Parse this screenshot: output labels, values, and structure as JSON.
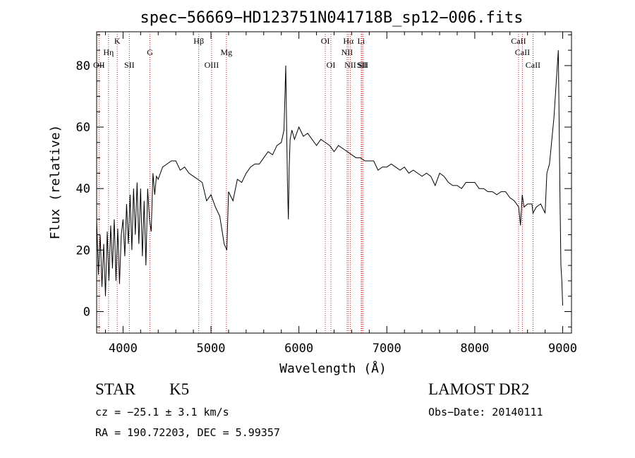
{
  "chart_data": {
    "type": "line",
    "title": "spec−56669−HD123751N041718B_sp12−006.fits",
    "xlabel": "Wavelength (Å)",
    "ylabel": "Flux (relative)",
    "xlim": [
      3700,
      9100
    ],
    "ylim": [
      -7,
      91
    ],
    "xticks": [
      4000,
      5000,
      6000,
      7000,
      8000,
      9000
    ],
    "yticks": [
      0,
      20,
      40,
      60,
      80
    ],
    "grid": false,
    "series": [
      {
        "x": [
          3700,
          3720,
          3740,
          3760,
          3780,
          3800,
          3820,
          3840,
          3860,
          3880,
          3900,
          3920,
          3940,
          3960,
          3980,
          4000,
          4020,
          4040,
          4060,
          4080,
          4100,
          4120,
          4140,
          4160,
          4180,
          4200,
          4220,
          4240,
          4260,
          4280,
          4300,
          4320,
          4340,
          4360,
          4380,
          4400,
          4450,
          4500,
          4550,
          4600,
          4650,
          4700,
          4750,
          4800,
          4850,
          4900,
          4950,
          5000,
          5050,
          5100,
          5150,
          5180,
          5200,
          5250,
          5300,
          5350,
          5400,
          5450,
          5500,
          5550,
          5600,
          5650,
          5700,
          5750,
          5800,
          5830,
          5850,
          5870,
          5880,
          5890,
          5900,
          5920,
          5950,
          6000,
          6050,
          6100,
          6150,
          6200,
          6250,
          6300,
          6350,
          6400,
          6450,
          6500,
          6550,
          6600,
          6650,
          6700,
          6750,
          6800,
          6850,
          6900,
          6950,
          7000,
          7050,
          7100,
          7150,
          7200,
          7250,
          7300,
          7350,
          7400,
          7450,
          7500,
          7550,
          7600,
          7650,
          7700,
          7750,
          7800,
          7850,
          7900,
          7950,
          8000,
          8050,
          8100,
          8150,
          8200,
          8250,
          8300,
          8350,
          8400,
          8450,
          8500,
          8520,
          8540,
          8560,
          8600,
          8650,
          8662,
          8700,
          8750,
          8800,
          8820,
          8850,
          8900,
          8950,
          8970,
          8980,
          8990,
          9000
        ],
        "y": [
          30,
          12,
          25,
          8,
          22,
          5,
          26,
          10,
          28,
          14,
          30,
          10,
          27,
          9,
          25,
          30,
          18,
          35,
          22,
          38,
          20,
          40,
          25,
          42,
          22,
          40,
          18,
          36,
          15,
          40,
          30,
          26,
          45,
          38,
          44,
          43,
          47,
          48,
          49,
          49,
          46,
          47,
          45,
          44,
          43,
          42,
          36,
          38,
          34,
          31,
          22,
          20,
          39,
          36,
          43,
          42,
          45,
          47,
          48,
          48,
          50,
          52,
          51,
          54,
          55,
          59,
          80,
          42,
          30,
          47,
          56,
          59,
          56,
          60,
          57,
          58,
          56,
          54,
          56,
          55,
          54,
          52,
          54,
          53,
          52,
          51,
          50,
          50,
          49,
          49,
          49,
          46,
          47,
          47,
          48,
          47,
          46,
          47,
          45,
          46,
          45,
          44,
          45,
          44,
          41,
          45,
          44,
          42,
          41,
          41,
          40,
          42,
          42,
          42,
          40,
          40,
          39,
          39,
          38,
          39,
          39,
          37,
          36,
          34,
          28,
          38,
          34,
          35,
          35,
          32,
          34,
          35,
          32,
          45,
          48,
          63,
          85,
          35,
          15,
          10,
          2
        ]
      }
    ],
    "lines": [
      {
        "label": "OII",
        "x": 3727
      },
      {
        "label": "Hη",
        "x": 3835
      },
      {
        "label": "K",
        "x": 3934
      },
      {
        "label": "SII",
        "x": 4072
      },
      {
        "label": "G",
        "x": 4306
      },
      {
        "label": "Hβ",
        "x": 4861
      },
      {
        "label": "OIII",
        "x": 5007
      },
      {
        "label": "Mg",
        "x": 5175
      },
      {
        "label": "OI",
        "x": 6300
      },
      {
        "label": "OI",
        "x": 6364
      },
      {
        "label": "Hα",
        "x": 6563
      },
      {
        "label": "NII",
        "x": 6548
      },
      {
        "label": "NII",
        "x": 6584
      },
      {
        "label": "SII",
        "x": 6717
      },
      {
        "label": "Li",
        "x": 6708
      },
      {
        "label": "SII",
        "x": 6731
      },
      {
        "label": "CaII",
        "x": 8498
      },
      {
        "label": "CaII",
        "x": 8542
      },
      {
        "label": "CaII",
        "x": 8662
      }
    ]
  },
  "info": {
    "class_label": "STAR",
    "subclass_label": "K5",
    "survey": "LAMOST DR2",
    "cz": "cz = −25.1 ± 3.1 km/s",
    "obs_date": "Obs−Date: 20140111",
    "radec": "RA = 190.72203, DEC =    5.99357"
  },
  "colors": {
    "spectrum": "#000000",
    "line_marker": "#b22222",
    "axes": "#000000"
  }
}
